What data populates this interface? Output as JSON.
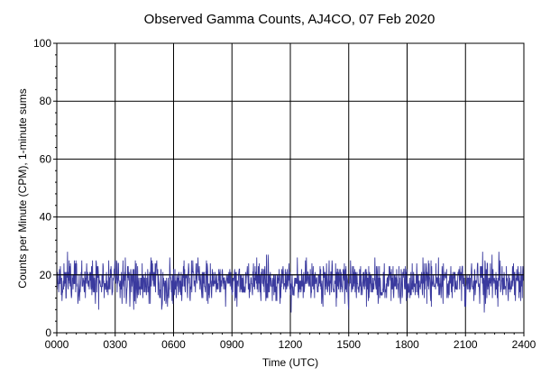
{
  "chart_data": {
    "type": "line",
    "title": "Observed Gamma Counts, AJ4CO, 07 Feb 2020",
    "xlabel": "Time (UTC)",
    "ylabel": "Counts per Minute (CPM), 1-minute sums",
    "xlim": [
      0,
      1440
    ],
    "ylim": [
      0,
      100
    ],
    "x_tick_labels": [
      "0000",
      "0300",
      "0600",
      "0900",
      "1200",
      "1500",
      "1800",
      "2100",
      "2400"
    ],
    "y_tick_labels": [
      "0",
      "20",
      "40",
      "60",
      "80",
      "100"
    ],
    "grid": true,
    "reference_line_y": 20,
    "series": [
      {
        "color": "#3a3a9e",
        "sampling": "1-minute sums, 1440 points; values are per-minute CPM in 0000-2400 UTC",
        "mean": 17.5,
        "range": [
          5,
          31
        ],
        "values": []
      }
    ]
  }
}
